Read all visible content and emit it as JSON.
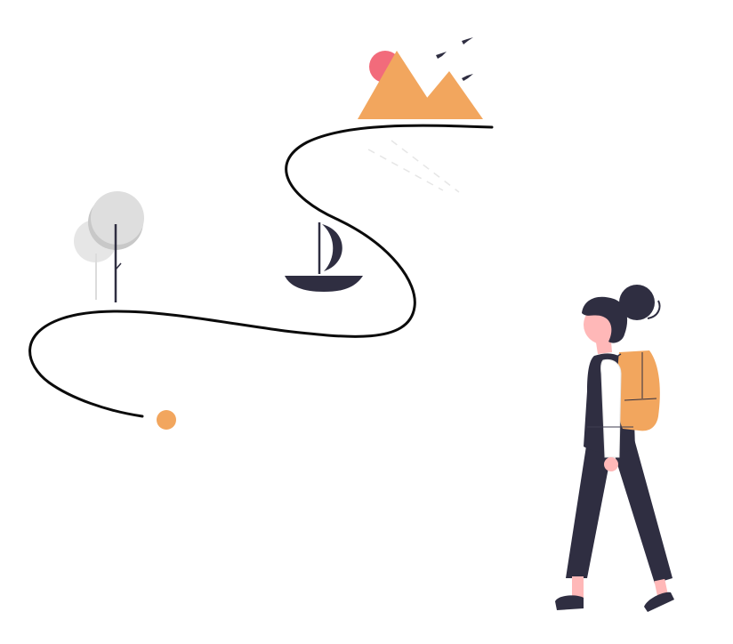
{
  "illustration": {
    "subject": "journey",
    "colors": {
      "background": "#ffffff",
      "path": "#0b0b0b",
      "accent_orange": "#f2a65e",
      "sun_pink": "#f26b7b",
      "dark_navy": "#2f2e41",
      "tree_gray": "#dcdcdc",
      "skin": "#ffb8b8",
      "shirt": "#ffffff"
    },
    "elements": [
      "trail-path",
      "start-dot",
      "trees",
      "sailboat",
      "mountains",
      "sun",
      "birds",
      "hiker-woman",
      "backpack"
    ]
  }
}
